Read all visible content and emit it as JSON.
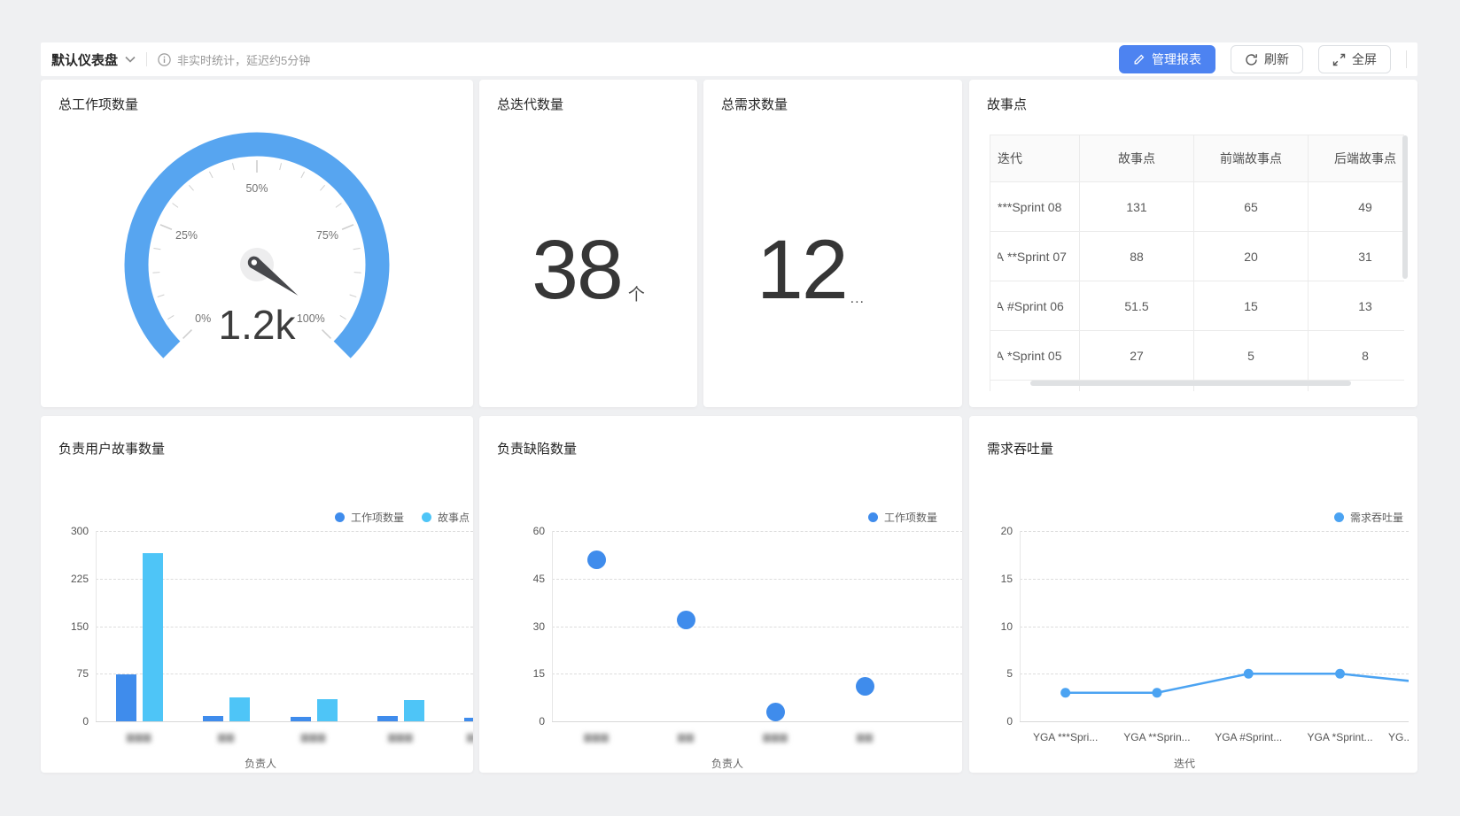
{
  "topbar": {
    "title": "默认仪表盘",
    "notice": "非实时统计，延迟约5分钟",
    "manage_label": "管理报表",
    "refresh_label": "刷新",
    "fullscreen_label": "全屏",
    "accent": "#4d83f1"
  },
  "cards": {
    "total_work_items": {
      "title": "总工作项数量"
    },
    "total_iterations": {
      "title": "总迭代数量",
      "value": "38",
      "unit": "个"
    },
    "total_requirements": {
      "title": "总需求数量",
      "value": "12",
      "suffix": "..."
    },
    "story_points": {
      "title": "故事点",
      "columns": [
        "迭代",
        "故事点",
        "前端故事点",
        "后端故事点"
      ],
      "rows": [
        {
          "prefix": "",
          "iteration": "***Sprint 08",
          "story_points": "131",
          "frontend": "65",
          "backend": "49"
        },
        {
          "prefix": "A",
          "iteration": "**Sprint 07",
          "story_points": "88",
          "frontend": "20",
          "backend": "31"
        },
        {
          "prefix": "A",
          "iteration": "#Sprint 06",
          "story_points": "51.5",
          "frontend": "15",
          "backend": "13"
        },
        {
          "prefix": "A",
          "iteration": "*Sprint 05",
          "story_points": "27",
          "frontend": "5",
          "backend": "8"
        }
      ]
    },
    "user_stories": {
      "title": "负责用户故事数量",
      "xlabel": "负责人"
    },
    "defects": {
      "title": "负责缺陷数量",
      "xlabel": "负责人"
    },
    "throughput": {
      "title": "需求吞吐量",
      "xlabel": "迭代"
    }
  },
  "chart_data": [
    {
      "id": "total_work_items",
      "type": "gauge",
      "title": "总工作项数量",
      "value_label": "1.2k",
      "percent": 0.97,
      "axis_labels": [
        "0%",
        "25%",
        "50%",
        "75%",
        "100%"
      ],
      "arc_color": "#57a5f0",
      "needle_color": "#47484c"
    },
    {
      "id": "user_stories",
      "type": "bar",
      "title": "负责用户故事数量",
      "xlabel": "负责人",
      "ylim": [
        0,
        300
      ],
      "yticks": [
        0,
        75,
        150,
        225,
        300
      ],
      "grid": "dashed-horizontal",
      "legend_position": "top-right",
      "categories": [
        {
          "label": "▆▆▆",
          "blurred": true
        },
        {
          "label": "▆▆",
          "blurred": true
        },
        {
          "label": "▆▆▆",
          "blurred": true
        },
        {
          "label": "▆▆▆",
          "blurred": true
        },
        {
          "label": "▆▆▆",
          "blurred": true
        }
      ],
      "series": [
        {
          "name": "工作项数量",
          "color": "#3f8cec",
          "values": [
            74,
            9,
            7,
            9,
            6
          ]
        },
        {
          "name": "故事点",
          "color": "#4ec5f7",
          "values": [
            265,
            38,
            35,
            33,
            null
          ]
        }
      ]
    },
    {
      "id": "defects",
      "type": "scatter",
      "title": "负责缺陷数量",
      "xlabel": "负责人",
      "ylim": [
        0,
        60
      ],
      "yticks": [
        0,
        15,
        30,
        45,
        60
      ],
      "grid": "dashed-horizontal",
      "legend_position": "top-right",
      "categories": [
        {
          "label": "▆▆▆",
          "blurred": true
        },
        {
          "label": "▆▆",
          "blurred": true
        },
        {
          "label": "▆▆▆",
          "blurred": true
        },
        {
          "label": "▆▆",
          "blurred": true
        }
      ],
      "series": [
        {
          "name": "工作项数量",
          "color": "#3f8cec",
          "values": [
            51,
            32,
            3,
            11
          ]
        }
      ]
    },
    {
      "id": "throughput",
      "type": "line",
      "title": "需求吞吐量",
      "xlabel": "迭代",
      "ylim": [
        0,
        20
      ],
      "yticks": [
        0,
        5,
        10,
        15,
        20
      ],
      "grid": "dashed-horizontal",
      "legend_position": "top-right",
      "categories": [
        {
          "label": "YGA ***Spri..."
        },
        {
          "label": "YGA **Sprin..."
        },
        {
          "label": "YGA #Sprint..."
        },
        {
          "label": "YGA *Sprint..."
        },
        {
          "label": "YG..."
        }
      ],
      "series": [
        {
          "name": "需求吞吐量",
          "color": "#4ba3f2",
          "values": [
            3,
            3,
            5,
            5,
            4
          ]
        }
      ]
    }
  ]
}
